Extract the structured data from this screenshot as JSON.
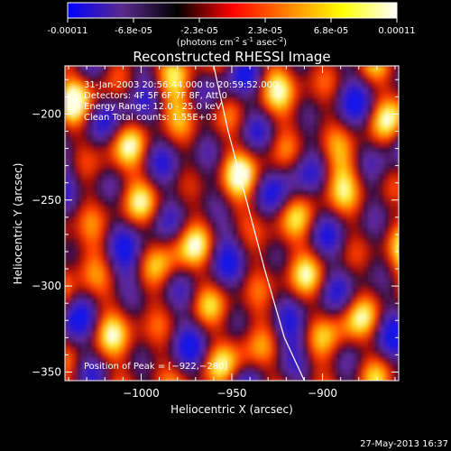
{
  "colors": {
    "background": "#000000",
    "colormap": [
      "#0000ff",
      "#5a2a8c",
      "#000000",
      "#ff0000",
      "#ff8000",
      "#ffff00",
      "#ffffff"
    ],
    "overlay_text": "#ffffff",
    "limb_line": "#ffffff"
  },
  "colorbar": {
    "tick_labels": [
      "-0.00011",
      "-6.8e-05",
      "-2.3e-05",
      "2.3e-05",
      "6.8e-05",
      "0.00011"
    ],
    "min": -0.00011,
    "max": 0.00011
  },
  "footer": {
    "date": "27-May-2013 16:37"
  },
  "chart_data": {
    "type": "heatmap",
    "title": "Reconstructed RHESSI Image",
    "units_label": {
      "pre": "(photons cm",
      "exp1": "-2",
      "mid1": " s",
      "exp2": "-1",
      "mid2": " asec",
      "exp3": "-2",
      "post": ")"
    },
    "xlabel": "Heliocentric X (arcsec)",
    "ylabel": "Heliocentric Y (arcsec)",
    "xlim": [
      -1042,
      -858
    ],
    "ylim": [
      -355,
      -172
    ],
    "x_ticks": [
      -1000,
      -950,
      -900
    ],
    "x_tick_labels": [
      "−1000",
      "−950",
      "−900"
    ],
    "y_ticks": [
      -200,
      -250,
      -300,
      -350
    ],
    "y_tick_labels": [
      "−200",
      "−250",
      "−300",
      "−350"
    ],
    "annotations": [
      "31-Jan-2003 20:56:44.000 to 20:59:52.000",
      "Detectors: 4F 5F 6F 7F 8F, Att 0",
      "Energy Range: 12.0 - 25.0 keV",
      "Clean    Total counts: 1.55E+03"
    ],
    "peak_label": "Position of Peak = [−922,−280]",
    "peak": [
      -922,
      -280
    ],
    "limb_curve": {
      "x": [
        -960,
        -952,
        -942,
        -932,
        -921,
        -910
      ],
      "y": [
        -172,
        -210,
        -250,
        -290,
        -330,
        -355
      ]
    }
  }
}
